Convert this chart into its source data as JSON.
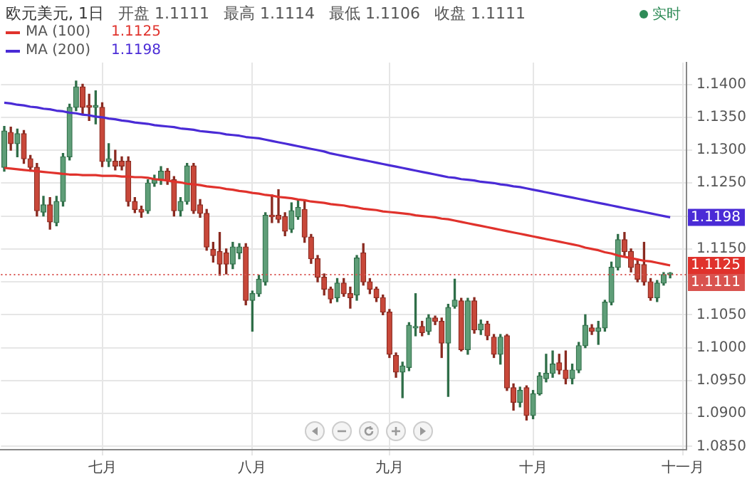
{
  "chart_data": {
    "type": "candlestick",
    "title": "欧元美元, 1日",
    "annotations": [
      "开盘 1.1111",
      "最高 1.1114",
      "最低 1.1106",
      "收盘 1.1111",
      "实时",
      {
        "text": "1.1125",
        "y": 1.1125
      },
      {
        "text": "1.1198",
        "y": 1.1198
      }
    ],
    "categories": [
      null,
      null,
      null,
      null,
      null,
      null,
      null,
      null,
      null,
      null,
      null,
      null,
      null,
      null,
      null,
      "七月",
      null,
      null,
      null,
      null,
      null,
      null,
      null,
      null,
      null,
      null,
      null,
      null,
      null,
      null,
      null,
      null,
      null,
      null,
      null,
      null,
      null,
      null,
      "八月",
      null,
      null,
      null,
      null,
      null,
      null,
      null,
      null,
      null,
      null,
      null,
      null,
      null,
      null,
      null,
      null,
      null,
      null,
      null,
      null,
      "九月",
      null,
      null,
      null,
      null,
      null,
      null,
      null,
      null,
      null,
      null,
      null,
      null,
      null,
      null,
      null,
      null,
      null,
      null,
      null,
      null,
      null,
      "十月",
      null,
      null,
      null,
      null,
      null,
      null,
      null,
      null,
      null,
      null,
      null,
      null,
      null,
      null,
      null,
      null,
      null,
      null,
      null,
      null,
      null,
      null,
      "十一月"
    ],
    "ohlc": [
      [
        1.1274,
        1.1336,
        1.1268,
        1.1329
      ],
      [
        1.1327,
        1.1335,
        1.13,
        1.131
      ],
      [
        1.131,
        1.1332,
        1.129,
        1.1325
      ],
      [
        1.1325,
        1.133,
        1.128,
        1.1287
      ],
      [
        1.1287,
        1.1292,
        1.1268,
        1.1274
      ],
      [
        1.1274,
        1.128,
        1.12,
        1.1208
      ],
      [
        1.1206,
        1.123,
        1.12,
        1.1217
      ],
      [
        1.1217,
        1.1228,
        1.118,
        1.1191
      ],
      [
        1.119,
        1.123,
        1.1185,
        1.1222
      ],
      [
        1.1222,
        1.1295,
        1.1215,
        1.129
      ],
      [
        1.129,
        1.137,
        1.1285,
        1.1365
      ],
      [
        1.1365,
        1.1405,
        1.136,
        1.1396
      ],
      [
        1.1396,
        1.14,
        1.1355,
        1.1365
      ],
      [
        1.1368,
        1.1385,
        1.1345,
        1.1365
      ],
      [
        1.1365,
        1.139,
        1.134,
        1.1368
      ],
      [
        1.1365,
        1.1372,
        1.1275,
        1.1283
      ],
      [
        1.1283,
        1.131,
        1.1275,
        1.1287
      ],
      [
        1.1283,
        1.13,
        1.127,
        1.1276
      ],
      [
        1.1283,
        1.129,
        1.127,
        1.1276
      ],
      [
        1.1283,
        1.129,
        1.1215,
        1.1222
      ],
      [
        1.1222,
        1.1228,
        1.1205,
        1.121
      ],
      [
        1.121,
        1.1215,
        1.1198,
        1.1206
      ],
      [
        1.1208,
        1.1255,
        1.1204,
        1.125
      ],
      [
        1.125,
        1.1262,
        1.1245,
        1.1255
      ],
      [
        1.1254,
        1.1275,
        1.1248,
        1.1268
      ],
      [
        1.1268,
        1.1272,
        1.1248,
        1.1254
      ],
      [
        1.1255,
        1.126,
        1.12,
        1.1208
      ],
      [
        1.1208,
        1.1228,
        1.12,
        1.1222
      ],
      [
        1.1222,
        1.128,
        1.1218,
        1.1276
      ],
      [
        1.1276,
        1.128,
        1.1204,
        1.1208
      ],
      [
        1.1217,
        1.1225,
        1.1198,
        1.1204
      ],
      [
        1.1204,
        1.121,
        1.1148,
        1.1153
      ],
      [
        1.1149,
        1.116,
        1.113,
        1.114
      ],
      [
        1.1146,
        1.1175,
        1.111,
        1.1127
      ],
      [
        1.1144,
        1.115,
        1.1112,
        1.1127
      ],
      [
        1.1127,
        1.116,
        1.112,
        1.1153
      ],
      [
        1.1144,
        1.1158,
        1.1135,
        1.1153
      ],
      [
        1.1153,
        1.1158,
        1.1065,
        1.1072
      ],
      [
        1.1072,
        1.1086,
        1.1025,
        1.1082
      ],
      [
        1.1082,
        1.111,
        1.1078,
        1.1104
      ],
      [
        1.11,
        1.1205,
        1.1095,
        1.1201
      ],
      [
        1.1201,
        1.1232,
        1.119,
        1.1199
      ],
      [
        1.1201,
        1.124,
        1.119,
        1.1195
      ],
      [
        1.1199,
        1.1205,
        1.117,
        1.1177
      ],
      [
        1.118,
        1.122,
        1.1175,
        1.1208
      ],
      [
        1.1199,
        1.1225,
        1.1195,
        1.1213
      ],
      [
        1.121,
        1.1222,
        1.116,
        1.1168
      ],
      [
        1.1168,
        1.1172,
        1.1128,
        1.1135
      ],
      [
        1.1135,
        1.114,
        1.11,
        1.1107
      ],
      [
        1.1107,
        1.1112,
        1.108,
        1.1089
      ],
      [
        1.1089,
        1.1092,
        1.1068,
        1.1074
      ],
      [
        1.1076,
        1.1105,
        1.107,
        1.1098
      ],
      [
        1.1098,
        1.1105,
        1.1078,
        1.1082
      ],
      [
        1.1082,
        1.1092,
        1.106,
        1.1076
      ],
      [
        1.108,
        1.114,
        1.1072,
        1.1136
      ],
      [
        1.1144,
        1.1158,
        1.1095,
        1.11
      ],
      [
        1.11,
        1.1105,
        1.1082,
        1.1089
      ],
      [
        1.1089,
        1.1092,
        1.107,
        1.1076
      ],
      [
        1.1076,
        1.108,
        1.105,
        1.1054
      ],
      [
        1.1054,
        1.1058,
        1.0985,
        1.099
      ],
      [
        1.0988,
        1.0992,
        1.0955,
        1.0963
      ],
      [
        1.0963,
        1.0978,
        1.0924,
        1.0972
      ],
      [
        1.097,
        1.1038,
        1.0965,
        1.1034
      ],
      [
        1.103,
        1.1082,
        1.1018,
        1.1032
      ],
      [
        1.1032,
        1.104,
        1.1018,
        1.1023
      ],
      [
        1.1025,
        1.105,
        1.102,
        1.1045
      ],
      [
        1.1045,
        1.1048,
        1.1035,
        1.104
      ],
      [
        1.104,
        1.1045,
        1.0985,
        1.1007
      ],
      [
        1.1007,
        1.1066,
        1.0926,
        1.1061
      ],
      [
        1.1063,
        1.1104,
        1.106,
        1.1072
      ],
      [
        1.1071,
        1.1075,
        1.0995,
        1.0997
      ],
      [
        1.0997,
        1.1075,
        1.099,
        1.1071
      ],
      [
        1.1071,
        1.1076,
        1.1022,
        1.1027
      ],
      [
        1.1027,
        1.1042,
        1.102,
        1.1036
      ],
      [
        1.1036,
        1.104,
        1.1012,
        1.1018
      ],
      [
        1.1016,
        1.102,
        1.0985,
        1.099
      ],
      [
        1.099,
        1.102,
        1.0975,
        1.1016
      ],
      [
        1.1018,
        1.102,
        1.0935,
        1.0939
      ],
      [
        1.0939,
        1.0945,
        1.0905,
        1.0917
      ],
      [
        1.0917,
        1.094,
        1.091,
        1.0935
      ],
      [
        1.0939,
        1.0942,
        1.089,
        1.0897
      ],
      [
        1.0897,
        1.0935,
        1.0892,
        1.093
      ],
      [
        1.093,
        1.0962,
        1.0928,
        1.0957
      ],
      [
        1.0953,
        1.099,
        1.0948,
        1.0961
      ],
      [
        1.0961,
        1.0995,
        1.0955,
        1.0975
      ],
      [
        1.0977,
        1.099,
        1.096,
        1.0966
      ],
      [
        1.0966,
        1.0995,
        1.0945,
        1.0953
      ],
      [
        1.0953,
        1.0975,
        1.0945,
        1.0966
      ],
      [
        1.0966,
        1.1008,
        1.0962,
        1.1003
      ],
      [
        1.1003,
        1.105,
        1.1,
        1.1034
      ],
      [
        1.103,
        1.1035,
        1.102,
        1.1025
      ],
      [
        1.1025,
        1.104,
        1.1005,
        1.103
      ],
      [
        1.103,
        1.1072,
        1.1025,
        1.1069
      ],
      [
        1.1069,
        1.113,
        1.1065,
        1.1122
      ],
      [
        1.1122,
        1.1172,
        1.1118,
        1.1164
      ],
      [
        1.1164,
        1.1175,
        1.114,
        1.1146
      ],
      [
        1.1146,
        1.115,
        1.1115,
        1.1122
      ],
      [
        1.1127,
        1.1132,
        1.11,
        1.1104
      ],
      [
        1.1126,
        1.116,
        1.1095,
        1.11
      ],
      [
        1.11,
        1.1105,
        1.1072,
        1.1076
      ],
      [
        1.1076,
        1.1102,
        1.107,
        1.1098
      ],
      [
        1.1098,
        1.1114,
        1.1095,
        1.1111
      ],
      [
        1.1111,
        1.1114,
        1.1106,
        1.1111
      ],
      null,
      null
    ],
    "series": [
      {
        "type": "line",
        "name": "MA (100)",
        "color": "#e0322c",
        "values": [
          1.1273,
          1.1272,
          1.1271,
          1.127,
          1.1269,
          1.1268,
          1.1267,
          1.1266,
          1.1265,
          1.1264,
          1.1263,
          1.1263,
          1.1262,
          1.1262,
          1.1262,
          1.1261,
          1.1261,
          1.1261,
          1.126,
          1.126,
          1.1259,
          1.1259,
          1.1258,
          1.1256,
          1.1255,
          1.1254,
          1.1252,
          1.1251,
          1.1249,
          1.1248,
          1.1247,
          1.1245,
          1.1244,
          1.1243,
          1.1241,
          1.124,
          1.1238,
          1.1237,
          1.1235,
          1.1234,
          1.1232,
          1.1231,
          1.1229,
          1.1228,
          1.1227,
          1.1225,
          1.1224,
          1.1222,
          1.1221,
          1.122,
          1.1218,
          1.1217,
          1.1216,
          1.1214,
          1.1213,
          1.1211,
          1.121,
          1.1209,
          1.1207,
          1.1206,
          1.1205,
          1.1204,
          1.1203,
          1.1201,
          1.12,
          1.1199,
          1.1198,
          1.1196,
          1.1195,
          1.1193,
          1.1191,
          1.1189,
          1.1187,
          1.1185,
          1.1183,
          1.1181,
          1.1179,
          1.1177,
          1.1175,
          1.1173,
          1.1171,
          1.1169,
          1.1167,
          1.1165,
          1.1163,
          1.1161,
          1.1159,
          1.1157,
          1.1155,
          1.1152,
          1.115,
          1.1148,
          1.1145,
          1.1143,
          1.114,
          1.1138,
          1.1136,
          1.1134,
          1.1132,
          1.1131,
          1.1129,
          1.1127,
          1.1125,
          null,
          null
        ]
      },
      {
        "type": "line",
        "name": "MA (200)",
        "color": "#4a2bd6",
        "values": [
          1.1372,
          1.1371,
          1.1369,
          1.1368,
          1.1366,
          1.1365,
          1.1363,
          1.1362,
          1.136,
          1.1359,
          1.1357,
          1.1356,
          1.1354,
          1.1353,
          1.1351,
          1.135,
          1.1348,
          1.1347,
          1.1345,
          1.1344,
          1.1342,
          1.1341,
          1.134,
          1.1338,
          1.1337,
          1.1336,
          1.1335,
          1.1333,
          1.1332,
          1.1331,
          1.1329,
          1.1328,
          1.1327,
          1.1326,
          1.1324,
          1.1323,
          1.1322,
          1.132,
          1.1319,
          1.1318,
          1.1316,
          1.1314,
          1.1312,
          1.131,
          1.1308,
          1.1306,
          1.1304,
          1.1302,
          1.13,
          1.1298,
          1.1295,
          1.1293,
          1.1291,
          1.1289,
          1.1287,
          1.1285,
          1.1283,
          1.1281,
          1.1279,
          1.1277,
          1.1275,
          1.1273,
          1.1271,
          1.1269,
          1.1267,
          1.1265,
          1.1263,
          1.1261,
          1.1259,
          1.1258,
          1.1256,
          1.1255,
          1.1254,
          1.1252,
          1.1251,
          1.125,
          1.1248,
          1.1247,
          1.1245,
          1.1244,
          1.1242,
          1.124,
          1.1238,
          1.1236,
          1.1234,
          1.1232,
          1.123,
          1.1228,
          1.1226,
          1.1224,
          1.1222,
          1.122,
          1.1218,
          1.1216,
          1.1214,
          1.1212,
          1.121,
          1.1208,
          1.1206,
          1.1204,
          1.1202,
          1.12,
          1.1198,
          null,
          null
        ]
      }
    ],
    "ylim": [
      1.0845,
      1.1433
    ],
    "yticks": [
      {
        "value": 1.085,
        "label": "1.0850"
      },
      {
        "value": 1.09,
        "label": "1.0900"
      },
      {
        "value": 1.095,
        "label": "1.0950"
      },
      {
        "value": 1.1,
        "label": "1.1000"
      },
      {
        "value": 1.105,
        "label": "1.1050"
      },
      {
        "value": 1.11,
        "label": null
      },
      {
        "value": 1.115,
        "label": "1.1150"
      },
      {
        "value": 1.12,
        "label": null
      },
      {
        "value": 1.125,
        "label": "1.1250"
      },
      {
        "value": 1.13,
        "label": "1.1300"
      },
      {
        "value": 1.135,
        "label": "1.1350"
      },
      {
        "value": 1.14,
        "label": "1.1400"
      }
    ],
    "ref_lines": [
      {
        "axis": "y",
        "value": 1.1111,
        "label": "1.1111",
        "color": "#d9534f",
        "line_style": "dotted"
      }
    ],
    "grid": true,
    "legend": "top left",
    "line_style": "solid",
    "marker": "none"
  }
}
